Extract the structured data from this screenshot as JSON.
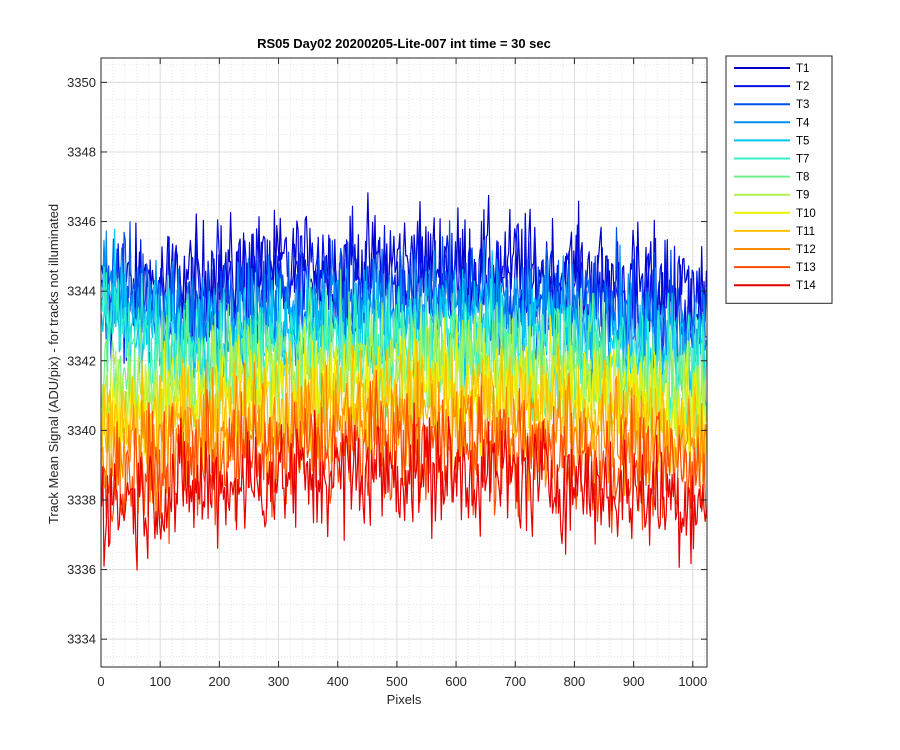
{
  "chart_data": {
    "type": "line",
    "title": "RS05 Day02 20200205-Lite-007 int time = 30 sec",
    "xlabel": "Pixels",
    "ylabel": "Track Mean Signal (ADU/pix) - for tracks not illuminated",
    "xlim": [
      0,
      1024
    ],
    "ylim": [
      3333.2,
      3350.7
    ],
    "xticks": [
      0,
      100,
      200,
      300,
      400,
      500,
      600,
      700,
      800,
      900,
      1000
    ],
    "yticks": [
      3334,
      3336,
      3338,
      3340,
      3342,
      3344,
      3346,
      3348,
      3350
    ],
    "grid": "major and minor",
    "legend_position": "outside top-right",
    "x_points": 1024,
    "series": [
      {
        "name": "T1",
        "color": "#0000c8",
        "base": 3344.3,
        "noise": 1.2
      },
      {
        "name": "T2",
        "color": "#0010e6",
        "base": 3343.9,
        "noise": 1.2
      },
      {
        "name": "T3",
        "color": "#0050f0",
        "base": 3343.4,
        "noise": 1.2
      },
      {
        "name": "T4",
        "color": "#0090f0",
        "base": 3343.0,
        "noise": 1.2
      },
      {
        "name": "T5",
        "color": "#00c8f5",
        "base": 3342.5,
        "noise": 1.2
      },
      {
        "name": "T7",
        "color": "#30f0c8",
        "base": 3342.1,
        "noise": 1.2
      },
      {
        "name": "T8",
        "color": "#70f08a",
        "base": 3341.7,
        "noise": 1.2
      },
      {
        "name": "T9",
        "color": "#b0f050",
        "base": 3341.3,
        "noise": 1.2
      },
      {
        "name": "T10",
        "color": "#f0f000",
        "base": 3340.8,
        "noise": 1.2
      },
      {
        "name": "T11",
        "color": "#ffc000",
        "base": 3340.3,
        "noise": 1.2
      },
      {
        "name": "T12",
        "color": "#ff8c00",
        "base": 3339.7,
        "noise": 1.2
      },
      {
        "name": "T13",
        "color": "#ff4c00",
        "base": 3339.0,
        "noise": 1.2
      },
      {
        "name": "T14",
        "color": "#e60000",
        "base": 3338.3,
        "noise": 1.2
      }
    ]
  }
}
